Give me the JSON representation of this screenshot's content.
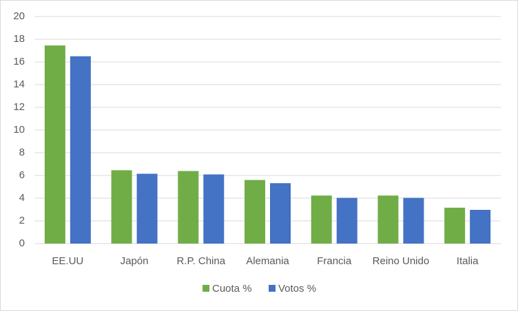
{
  "chart_data": {
    "type": "bar",
    "categories": [
      "EE.UU",
      "Japón",
      "R.P. China",
      "Alemania",
      "Francia",
      "Reino Unido",
      "Italia"
    ],
    "series": [
      {
        "name": "Cuota %",
        "color": "#70ad47",
        "values": [
          17.45,
          6.46,
          6.39,
          5.6,
          4.23,
          4.23,
          3.16
        ]
      },
      {
        "name": "Votos %",
        "color": "#4472c4",
        "values": [
          16.5,
          6.15,
          6.09,
          5.32,
          4.03,
          4.03,
          2.97
        ]
      }
    ],
    "ylim": [
      0,
      20
    ],
    "yticks": [
      0,
      2,
      4,
      6,
      8,
      10,
      12,
      14,
      16,
      18,
      20
    ],
    "grid": true,
    "legend": "bottom"
  }
}
